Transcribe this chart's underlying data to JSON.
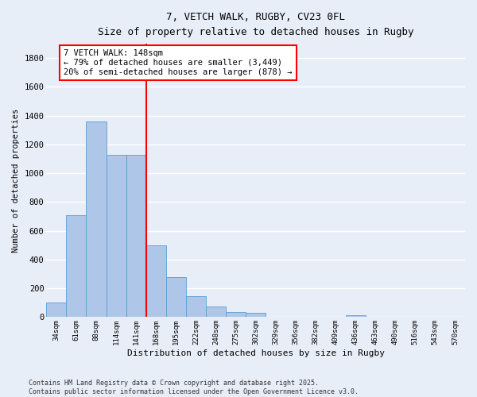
{
  "title1": "7, VETCH WALK, RUGBY, CV23 0FL",
  "title2": "Size of property relative to detached houses in Rugby",
  "xlabel": "Distribution of detached houses by size in Rugby",
  "ylabel": "Number of detached properties",
  "categories": [
    "34sqm",
    "61sqm",
    "88sqm",
    "114sqm",
    "141sqm",
    "168sqm",
    "195sqm",
    "222sqm",
    "248sqm",
    "275sqm",
    "302sqm",
    "329sqm",
    "356sqm",
    "382sqm",
    "409sqm",
    "436sqm",
    "463sqm",
    "490sqm",
    "516sqm",
    "543sqm",
    "570sqm"
  ],
  "values": [
    100,
    710,
    1360,
    1130,
    1130,
    500,
    280,
    145,
    75,
    35,
    30,
    0,
    0,
    0,
    0,
    15,
    0,
    0,
    0,
    0,
    0
  ],
  "bar_color": "#aec6e8",
  "bar_edge_color": "#5a9fd4",
  "background_color": "#e8eef8",
  "grid_color": "#ffffff",
  "vline_color": "red",
  "annotation_text1": "7 VETCH WALK: 148sqm",
  "annotation_text2": "← 79% of detached houses are smaller (3,449)",
  "annotation_text3": "20% of semi-detached houses are larger (878) →",
  "annotation_box_color": "red",
  "annotation_bg": "white",
  "ylim": [
    0,
    1900
  ],
  "yticks": [
    0,
    200,
    400,
    600,
    800,
    1000,
    1200,
    1400,
    1600,
    1800
  ],
  "footer1": "Contains HM Land Registry data © Crown copyright and database right 2025.",
  "footer2": "Contains public sector information licensed under the Open Government Licence v3.0."
}
